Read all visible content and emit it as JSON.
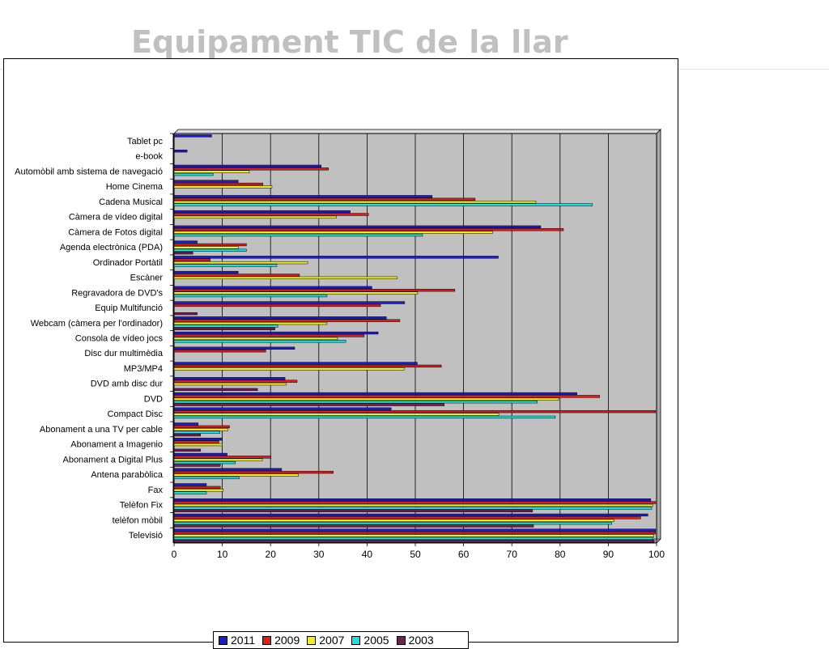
{
  "page": {
    "title": "Equipament TIC de la llar"
  },
  "chart_data": {
    "type": "bar",
    "orientation": "horizontal",
    "categories": [
      "Tablet pc",
      "e-book",
      "Automòbil amb sistema de navegació",
      "Home Cinema",
      "Cadena Musical",
      "Càmera de vídeo digital",
      "Càmera de Fotos digital",
      "Agenda electrònica (PDA)",
      "Ordinador Portàtil",
      "Escàner",
      "Regravadora de DVD's",
      "Equip Multifunció",
      "Webcam (càmera per l'ordinador)",
      "Consola de vídeo jocs",
      "Disc dur multimèdia",
      "MP3/MP4",
      "DVD amb disc dur",
      "DVD",
      "Compact Disc",
      "Abonament a una TV per cable",
      "Abonament a Imagenio",
      "Abonament a Digital Plus",
      "Antena parabòlica",
      "Fax",
      "Telèfon Fix",
      "telèfon mòbil",
      "Televisió"
    ],
    "series": [
      {
        "name": "2011",
        "color": "#1c1ccc",
        "values": [
          7.8,
          2.7,
          30.5,
          13.3,
          53.5,
          36.5,
          76,
          4.8,
          67.2,
          13.3,
          41,
          47.8,
          44,
          42.3,
          25,
          50.4,
          23,
          83.5,
          45,
          5,
          10,
          11,
          22.3,
          6.7,
          98.8,
          98.2,
          99.8
        ]
      },
      {
        "name": "2009",
        "color": "#dd1c1c",
        "values": [
          null,
          null,
          32,
          18.4,
          62.4,
          40.3,
          80.7,
          15,
          7.5,
          26,
          58.2,
          42.8,
          46.8,
          39.4,
          19,
          55.4,
          25.5,
          88.2,
          99.8,
          11.5,
          9.3,
          20.1,
          33,
          9.6,
          99.8,
          96.7,
          99.8
        ]
      },
      {
        "name": "2007",
        "color": "#eeee22",
        "values": [
          null,
          null,
          15.6,
          20.3,
          75,
          33.6,
          66,
          13.3,
          27.7,
          46.2,
          50.5,
          null,
          31.7,
          33.9,
          null,
          47.7,
          23.2,
          79.7,
          67.3,
          11.2,
          10,
          18.3,
          25.8,
          10.2,
          99.2,
          91.2,
          99.4
        ]
      },
      {
        "name": "2005",
        "color": "#22dddd",
        "values": [
          null,
          null,
          8.1,
          null,
          86.7,
          null,
          51.5,
          15,
          21.3,
          null,
          31.7,
          null,
          21.5,
          35.6,
          null,
          null,
          null,
          75.3,
          79,
          9.5,
          null,
          12.7,
          13.5,
          6.7,
          99,
          90.7,
          99.3
        ]
      },
      {
        "name": "2003",
        "color": "#771c55",
        "values": [
          null,
          null,
          null,
          null,
          null,
          null,
          null,
          3.9,
          null,
          null,
          null,
          4.8,
          20.9,
          null,
          null,
          null,
          17.3,
          56,
          null,
          5.5,
          5.5,
          9.6,
          null,
          null,
          74.3,
          74.5,
          99.5
        ]
      }
    ],
    "xlim": [
      0,
      100
    ],
    "xticks": [
      0,
      10,
      20,
      30,
      40,
      50,
      60,
      70,
      80,
      90,
      100
    ],
    "grid": "vertical",
    "legend_position": "bottom",
    "legend_order": [
      "2011",
      "2009",
      "2007",
      "2005",
      "2003"
    ]
  },
  "colors": {
    "plot_background": "#c0c0c0",
    "gridline": "#000000"
  }
}
